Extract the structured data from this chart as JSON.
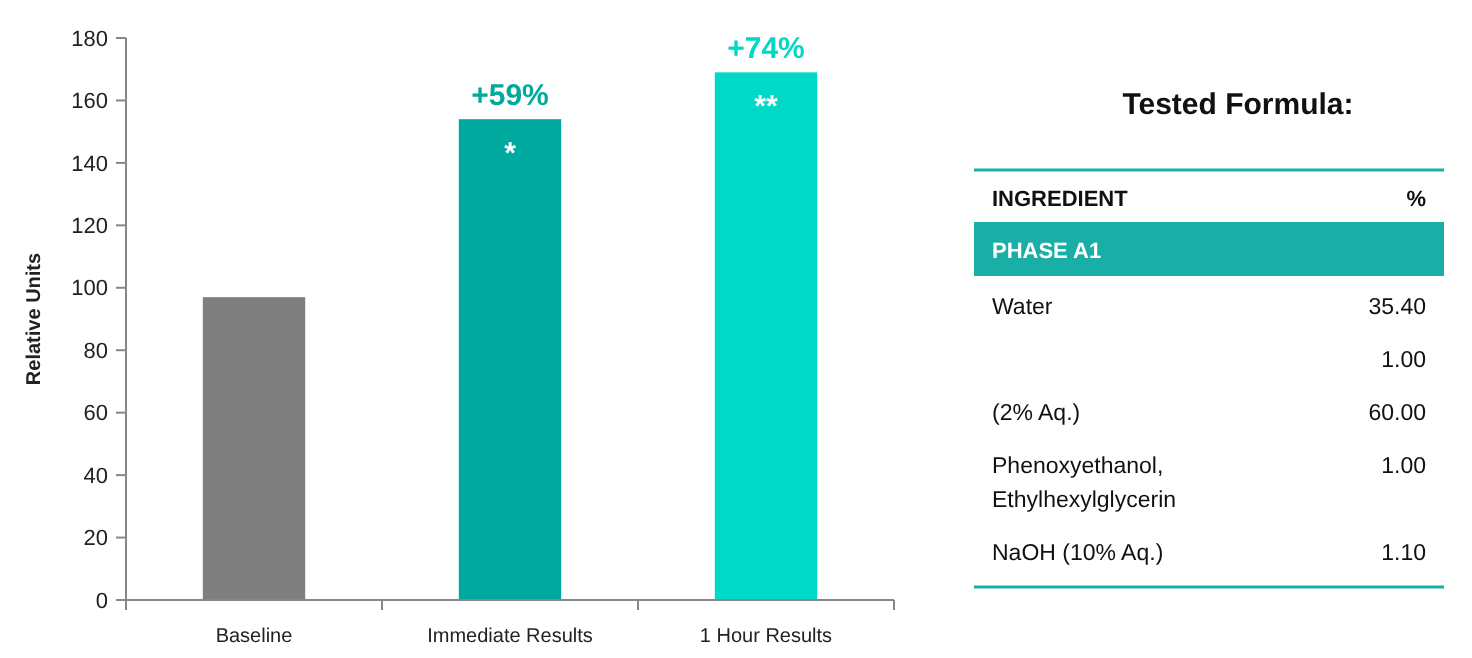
{
  "chart_data": [
    {
      "type": "bar",
      "ylabel": "Relative Units",
      "categories": [
        "Baseline",
        "Immediate Results",
        "1 Hour Results"
      ],
      "values": [
        97,
        154,
        169
      ],
      "colors": [
        "#7f7f7f",
        "#00a99d",
        "#00d9c5"
      ],
      "ylim": [
        0,
        180
      ],
      "yticks": [
        0,
        20,
        40,
        60,
        80,
        100,
        120,
        140,
        160,
        180
      ],
      "grid": false,
      "annotations": [
        {
          "text": "+59%",
          "x": "Immediate Results",
          "y": 154
        },
        {
          "text": "+74%",
          "x": "1 Hour Results",
          "y": 169
        },
        {
          "text": "*",
          "x": "Immediate Results",
          "y": 154
        },
        {
          "text": "**",
          "x": "1 Hour Results",
          "y": 169
        }
      ]
    },
    {
      "type": "other",
      "title": "Tested Formula:",
      "annotations": [
        "INGREDIENT",
        "%",
        "PHASE A1"
      ],
      "categories": [
        "Water",
        null,
        "(2% Aq.)",
        "Phenoxyethanol, Ethylhexylglycerin",
        "NaOH (10% Aq.)"
      ],
      "value_labels": [
        "35.40",
        "1.00",
        "60.00",
        "1.00",
        "1.10"
      ],
      "color": "#1aafa6"
    }
  ]
}
